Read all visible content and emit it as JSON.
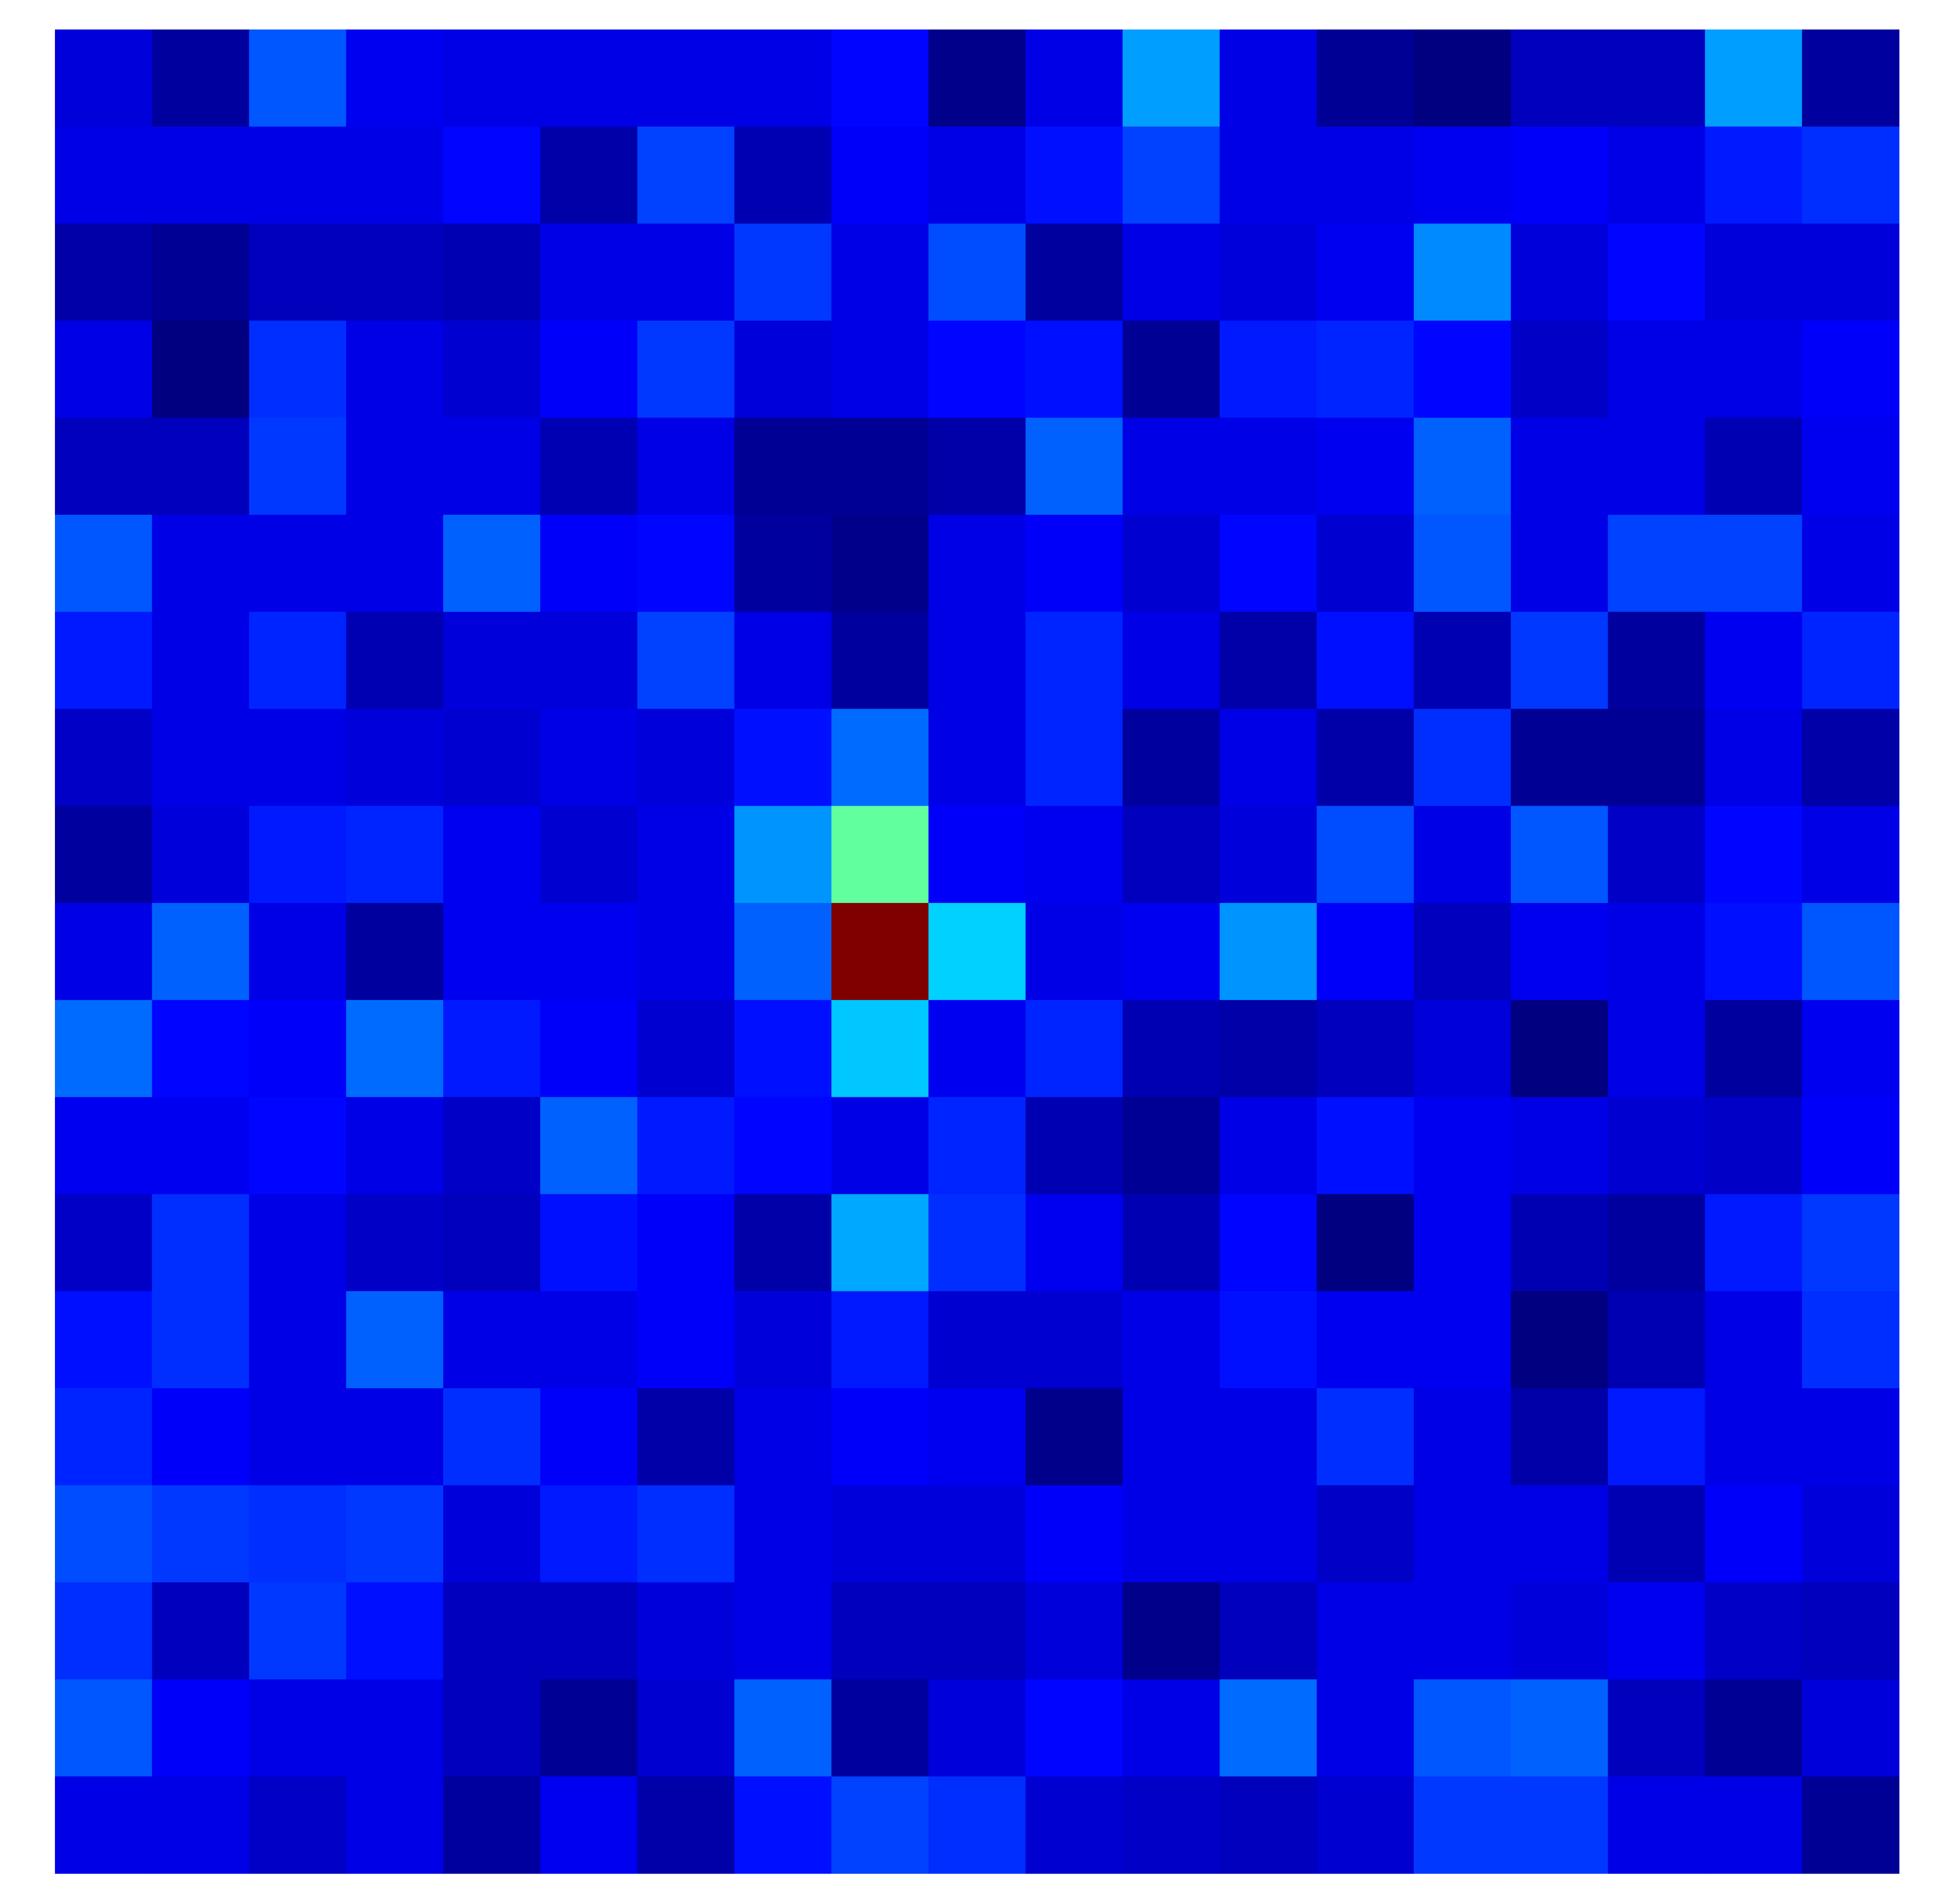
{
  "chart_data": {
    "type": "heatmap",
    "rows": 19,
    "cols": 19,
    "colormap": "jet",
    "color_range": [
      0,
      1
    ],
    "axes_visible": false,
    "grid": false,
    "legend": "none",
    "values": [
      [
        0.09,
        0.03,
        0.21,
        0.11,
        0.1,
        0.1,
        0.1,
        0.1,
        0.13,
        0.01,
        0.1,
        0.28,
        0.1,
        0.02,
        0.0,
        0.06,
        0.06,
        0.28,
        0.03
      ],
      [
        0.1,
        0.1,
        0.1,
        0.1,
        0.13,
        0.04,
        0.19,
        0.05,
        0.12,
        0.1,
        0.14,
        0.19,
        0.1,
        0.1,
        0.11,
        0.12,
        0.1,
        0.15,
        0.17
      ],
      [
        0.04,
        0.02,
        0.06,
        0.06,
        0.05,
        0.1,
        0.1,
        0.18,
        0.1,
        0.2,
        0.03,
        0.1,
        0.09,
        0.11,
        0.26,
        0.09,
        0.13,
        0.09,
        0.09
      ],
      [
        0.1,
        0.0,
        0.17,
        0.1,
        0.08,
        0.12,
        0.18,
        0.09,
        0.1,
        0.13,
        0.14,
        0.02,
        0.15,
        0.16,
        0.13,
        0.07,
        0.1,
        0.1,
        0.12
      ],
      [
        0.06,
        0.06,
        0.18,
        0.1,
        0.1,
        0.05,
        0.1,
        0.02,
        0.02,
        0.04,
        0.22,
        0.1,
        0.1,
        0.11,
        0.22,
        0.1,
        0.1,
        0.05,
        0.11
      ],
      [
        0.21,
        0.1,
        0.1,
        0.1,
        0.22,
        0.12,
        0.13,
        0.03,
        0.01,
        0.1,
        0.12,
        0.08,
        0.13,
        0.08,
        0.21,
        0.1,
        0.19,
        0.19,
        0.1
      ],
      [
        0.15,
        0.1,
        0.16,
        0.05,
        0.09,
        0.09,
        0.19,
        0.1,
        0.03,
        0.1,
        0.16,
        0.1,
        0.04,
        0.14,
        0.05,
        0.18,
        0.03,
        0.11,
        0.16
      ],
      [
        0.07,
        0.1,
        0.1,
        0.09,
        0.08,
        0.1,
        0.09,
        0.14,
        0.23,
        0.1,
        0.16,
        0.03,
        0.1,
        0.04,
        0.17,
        0.02,
        0.02,
        0.1,
        0.04
      ],
      [
        0.03,
        0.09,
        0.15,
        0.16,
        0.11,
        0.08,
        0.1,
        0.27,
        0.47,
        0.12,
        0.11,
        0.06,
        0.09,
        0.2,
        0.1,
        0.21,
        0.07,
        0.13,
        0.1
      ],
      [
        0.1,
        0.22,
        0.1,
        0.03,
        0.11,
        0.11,
        0.1,
        0.22,
        1.0,
        0.33,
        0.1,
        0.11,
        0.27,
        0.12,
        0.06,
        0.11,
        0.1,
        0.14,
        0.21
      ],
      [
        0.23,
        0.13,
        0.12,
        0.23,
        0.15,
        0.12,
        0.08,
        0.14,
        0.32,
        0.11,
        0.16,
        0.05,
        0.04,
        0.06,
        0.09,
        0.0,
        0.1,
        0.03,
        0.11
      ],
      [
        0.11,
        0.11,
        0.13,
        0.1,
        0.07,
        0.22,
        0.15,
        0.13,
        0.1,
        0.16,
        0.05,
        0.02,
        0.1,
        0.14,
        0.11,
        0.1,
        0.08,
        0.07,
        0.12
      ],
      [
        0.07,
        0.17,
        0.1,
        0.07,
        0.06,
        0.14,
        0.12,
        0.04,
        0.29,
        0.17,
        0.11,
        0.05,
        0.13,
        0.0,
        0.11,
        0.05,
        0.03,
        0.15,
        0.18
      ],
      [
        0.14,
        0.17,
        0.1,
        0.22,
        0.1,
        0.1,
        0.12,
        0.09,
        0.15,
        0.08,
        0.08,
        0.1,
        0.14,
        0.11,
        0.11,
        0.0,
        0.05,
        0.1,
        0.17
      ],
      [
        0.16,
        0.12,
        0.1,
        0.1,
        0.17,
        0.12,
        0.04,
        0.1,
        0.12,
        0.11,
        0.01,
        0.1,
        0.1,
        0.17,
        0.1,
        0.04,
        0.15,
        0.1,
        0.1
      ],
      [
        0.2,
        0.18,
        0.17,
        0.18,
        0.09,
        0.15,
        0.17,
        0.1,
        0.09,
        0.09,
        0.12,
        0.1,
        0.1,
        0.07,
        0.1,
        0.1,
        0.05,
        0.12,
        0.09
      ],
      [
        0.17,
        0.06,
        0.18,
        0.14,
        0.06,
        0.06,
        0.09,
        0.1,
        0.06,
        0.06,
        0.09,
        0.01,
        0.06,
        0.1,
        0.1,
        0.09,
        0.11,
        0.07,
        0.06
      ],
      [
        0.21,
        0.12,
        0.1,
        0.1,
        0.06,
        0.02,
        0.08,
        0.22,
        0.03,
        0.09,
        0.13,
        0.1,
        0.23,
        0.1,
        0.21,
        0.22,
        0.06,
        0.02,
        0.09
      ],
      [
        0.1,
        0.1,
        0.07,
        0.1,
        0.03,
        0.11,
        0.04,
        0.14,
        0.19,
        0.17,
        0.08,
        0.07,
        0.06,
        0.08,
        0.18,
        0.18,
        0.1,
        0.1,
        0.02
      ]
    ]
  }
}
